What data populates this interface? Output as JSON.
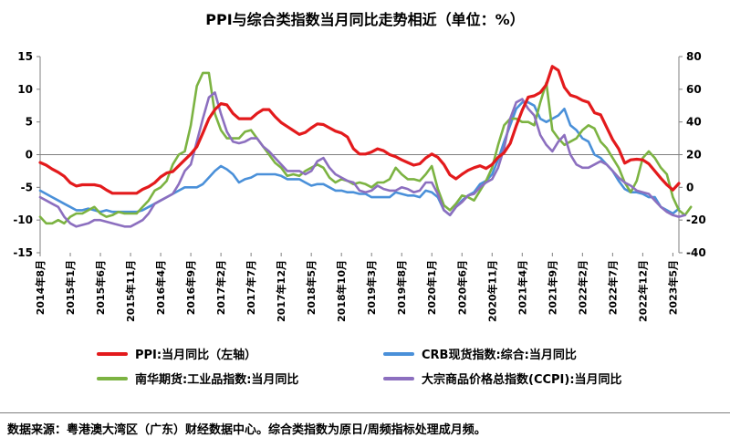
{
  "title": "PPI与综合类指数当月同比走势相近（单位：%）",
  "source_note": "数据来源：粤港澳大湾区（广东）财经数据中心。综合类指数为原日/周频指标处理成月频。",
  "chart_data": {
    "type": "line",
    "title": "PPI与综合类指数当月同比走势相近（单位：%）",
    "x_tick_labels": [
      "2014年8月",
      "2015年1月",
      "2015年6月",
      "2015年11月",
      "2016年4月",
      "2016年9月",
      "2017年2月",
      "2017年7月",
      "2017年12月",
      "2018年5月",
      "2018年10月",
      "2019年3月",
      "2019年8月",
      "2020年1月",
      "2020年6月",
      "2020年11月",
      "2021年4月",
      "2021年9月",
      "2022年2月",
      "2022年7月",
      "2022年12月",
      "2023年5月"
    ],
    "x_tick_every": 5,
    "left_axis": {
      "min": -15,
      "max": 15,
      "ticks": [
        -15,
        -10,
        -5,
        0,
        5,
        10,
        15
      ]
    },
    "right_axis": {
      "min": -40,
      "max": 80,
      "ticks": [
        -40,
        -20,
        0,
        20,
        40,
        60,
        80
      ]
    },
    "grid": false,
    "legend_position": "bottom",
    "series": [
      {
        "name": "PPI:当月同比（左轴）",
        "axis": "left",
        "color": "#e31a1c",
        "values": [
          -1.2,
          -1.6,
          -2.2,
          -2.7,
          -3.3,
          -4.3,
          -4.8,
          -4.6,
          -4.6,
          -4.6,
          -4.8,
          -5.4,
          -5.9,
          -5.9,
          -5.9,
          -5.9,
          -5.9,
          -5.3,
          -4.9,
          -4.3,
          -3.4,
          -2.8,
          -2.6,
          -1.7,
          -0.8,
          0.1,
          1.2,
          3.3,
          5.5,
          6.9,
          7.8,
          7.6,
          6.3,
          5.5,
          5.5,
          5.5,
          6.3,
          6.9,
          6.9,
          5.8,
          4.9,
          4.3,
          3.7,
          3.1,
          3.4,
          4.1,
          4.7,
          4.6,
          4.1,
          3.6,
          3.3,
          2.7,
          0.9,
          0.1,
          0.1,
          0.4,
          0.9,
          0.6,
          0.0,
          -0.3,
          -0.8,
          -1.2,
          -1.6,
          -1.4,
          -0.5,
          0.1,
          -0.4,
          -1.5,
          -3.1,
          -3.7,
          -3.0,
          -2.4,
          -2.0,
          -1.7,
          -2.1,
          -1.5,
          -0.4,
          0.3,
          1.7,
          4.4,
          6.8,
          8.8,
          9.0,
          9.5,
          10.7,
          13.5,
          12.9,
          10.3,
          9.1,
          8.8,
          8.3,
          8.0,
          6.4,
          6.1,
          4.2,
          2.3,
          0.9,
          -1.3,
          -0.8,
          -0.7,
          -0.8,
          -1.4,
          -2.5,
          -3.6,
          -4.6,
          -5.4,
          -4.4
        ]
      },
      {
        "name": "CRB现货指数:综合:当月同比",
        "axis": "right",
        "color": "#4a90d9",
        "values": [
          -2,
          -4,
          -6,
          -8,
          -10,
          -12,
          -14,
          -14,
          -13,
          -14,
          -15,
          -14,
          -15,
          -15,
          -15,
          -15,
          -15,
          -14,
          -12,
          -10,
          -8,
          -6,
          -4,
          -2,
          0,
          0,
          0,
          2,
          6,
          10,
          13,
          11,
          8,
          3,
          5,
          6,
          8,
          8,
          8,
          8,
          7,
          5,
          5,
          5,
          3,
          1,
          2,
          2,
          0,
          -2,
          -2,
          -3,
          -3,
          -4,
          -4,
          -6,
          -6,
          -6,
          -6,
          -3,
          -4,
          -5,
          -5,
          -6,
          -2,
          -3,
          -6,
          -14,
          -17,
          -12,
          -8,
          -5,
          -3,
          2,
          4,
          8,
          17,
          28,
          38,
          48,
          52,
          52,
          50,
          42,
          40,
          42,
          44,
          48,
          38,
          35,
          30,
          28,
          20,
          18,
          14,
          10,
          4,
          -1,
          -3,
          -3,
          -4,
          -6,
          -6,
          -12,
          -14,
          -16,
          -13
        ]
      },
      {
        "name": "南华期货:工业品指数:当月同比",
        "axis": "right",
        "color": "#7cb342",
        "values": [
          -18,
          -22,
          -22,
          -20,
          -22,
          -18,
          -16,
          -16,
          -14,
          -12,
          -16,
          -18,
          -17,
          -15,
          -16,
          -16,
          -16,
          -12,
          -8,
          -2,
          0,
          4,
          14,
          20,
          22,
          38,
          62,
          70,
          70,
          45,
          35,
          30,
          30,
          30,
          34,
          35,
          30,
          25,
          20,
          15,
          12,
          7,
          8,
          7,
          10,
          12,
          14,
          12,
          6,
          3,
          5,
          4,
          2,
          3,
          2,
          0,
          3,
          3,
          5,
          12,
          8,
          5,
          5,
          4,
          8,
          13,
          -1,
          -11,
          -14,
          -10,
          -5,
          -6,
          -8,
          -2,
          4,
          12,
          26,
          38,
          42,
          42,
          40,
          40,
          38,
          52,
          64,
          35,
          30,
          26,
          28,
          30,
          35,
          38,
          36,
          28,
          24,
          18,
          12,
          3,
          -3,
          4,
          18,
          22,
          18,
          12,
          8,
          -6,
          -14,
          -17,
          -12
        ]
      },
      {
        "name": "大宗商品价格总指数(CCPI):当月同比",
        "axis": "right",
        "color": "#8c6fbf",
        "values": [
          -6,
          -8,
          -10,
          -12,
          -18,
          -22,
          -24,
          -23,
          -22,
          -20,
          -20,
          -21,
          -22,
          -23,
          -24,
          -24,
          -22,
          -20,
          -16,
          -10,
          -8,
          -6,
          -4,
          2,
          10,
          14,
          28,
          42,
          55,
          58,
          45,
          34,
          28,
          27,
          28,
          30,
          30,
          25,
          22,
          18,
          14,
          10,
          10,
          10,
          8,
          10,
          16,
          18,
          12,
          8,
          6,
          4,
          3,
          -2,
          -3,
          -2,
          1,
          -1,
          -2,
          -2,
          0,
          -1,
          -3,
          -2,
          3,
          3,
          -4,
          -14,
          -17,
          -12,
          -9,
          -5,
          -4,
          0,
          3,
          5,
          12,
          24,
          42,
          52,
          54,
          48,
          44,
          32,
          26,
          22,
          28,
          32,
          20,
          14,
          12,
          12,
          14,
          16,
          14,
          10,
          6,
          3,
          1,
          -2,
          -3,
          -4,
          -8,
          -12,
          -15,
          -17,
          -18,
          -17
        ]
      }
    ]
  }
}
